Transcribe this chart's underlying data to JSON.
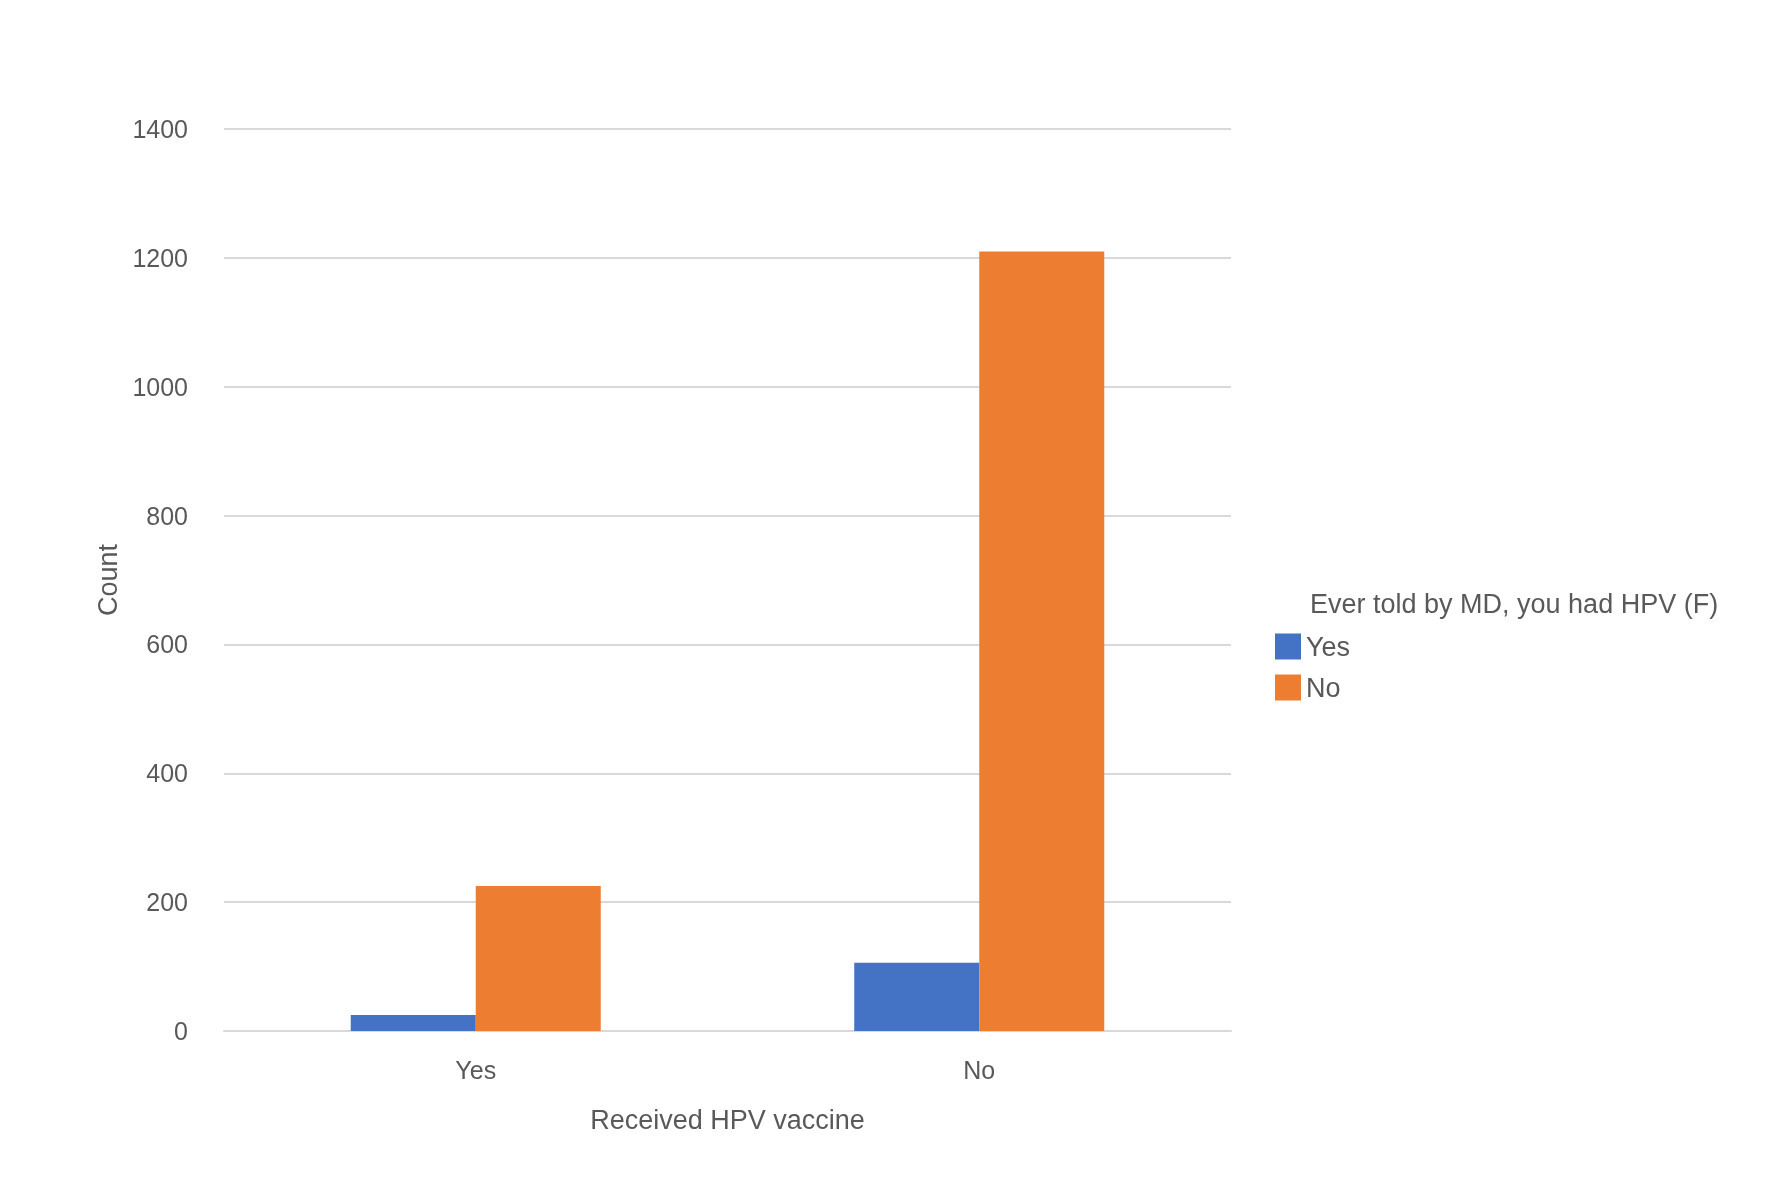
{
  "chart_data": {
    "type": "bar",
    "xlabel": "Received HPV vaccine",
    "ylabel": "Count",
    "legend_title": "Ever told by MD, you had HPV (F)",
    "categories": [
      "Yes",
      "No"
    ],
    "series": [
      {
        "name": "Yes",
        "color": "#4472c4",
        "values": [
          25,
          106
        ]
      },
      {
        "name": "No",
        "color": "#ed7d31",
        "values": [
          225,
          1210
        ]
      }
    ],
    "ylim": [
      0,
      1400
    ],
    "yticks": [
      0,
      200,
      400,
      600,
      800,
      1000,
      1200,
      1400
    ],
    "grid": "y",
    "legend": "right"
  }
}
